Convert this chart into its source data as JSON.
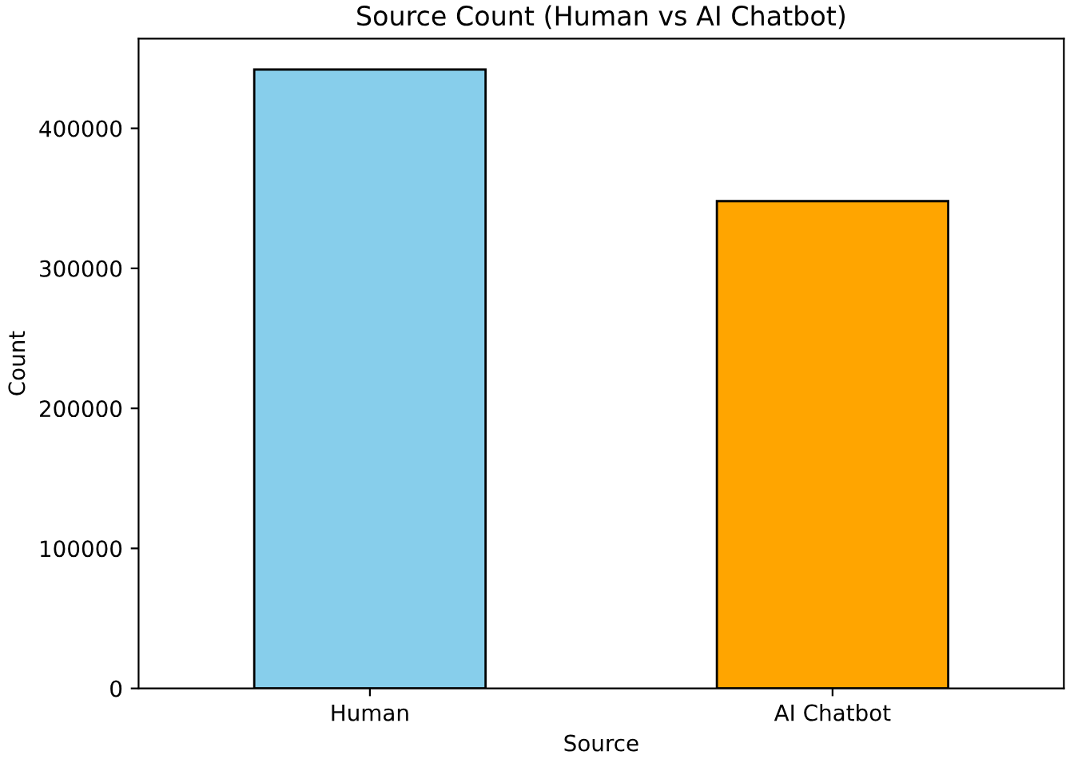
{
  "chart_data": {
    "type": "bar",
    "title": "Source Count (Human vs AI Chatbot)",
    "xlabel": "Source",
    "ylabel": "Count",
    "categories": [
      "Human",
      "AI Chatbot"
    ],
    "values": [
      442000,
      348000
    ],
    "colors": [
      "#87ceeb",
      "#ffa500"
    ],
    "ylim": [
      0,
      464000
    ],
    "yticks": [
      0,
      100000,
      200000,
      300000,
      400000
    ],
    "grid": false
  }
}
